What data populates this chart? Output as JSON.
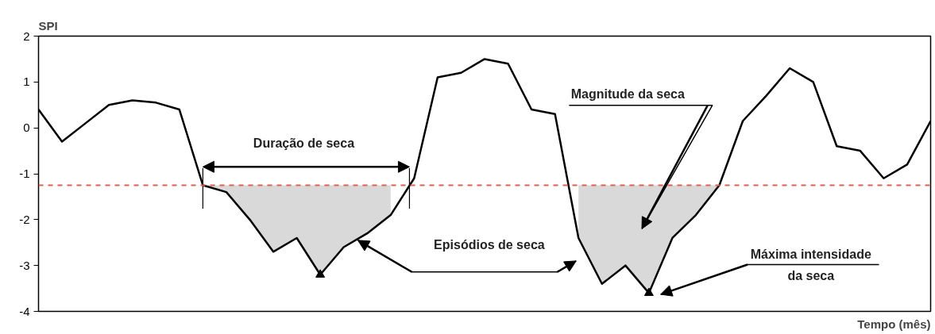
{
  "chart_data": {
    "type": "line",
    "xlabel": "Tempo (mês)",
    "ylabel": "SPI",
    "categories": [
      null,
      null,
      null,
      null,
      null,
      null,
      null,
      null,
      null,
      null,
      null,
      null,
      null,
      null,
      null,
      null,
      null,
      null,
      null,
      null,
      null,
      null,
      null,
      null,
      null,
      null,
      null,
      null,
      null,
      null,
      null,
      null,
      null,
      null,
      null,
      null,
      null,
      null,
      null
    ],
    "series": [
      {
        "color": "#000000",
        "values": [
          0.4,
          -0.3,
          0.1,
          0.5,
          0.6,
          0.55,
          0.4,
          -1.25,
          -1.4,
          -2.0,
          -2.7,
          -2.4,
          -3.2,
          -2.6,
          -2.3,
          -1.9,
          -1.1,
          1.1,
          1.2,
          1.5,
          1.4,
          0.4,
          0.3,
          -2.4,
          -3.4,
          -3.0,
          -3.6,
          -2.4,
          -1.9,
          -1.25,
          0.15,
          0.7,
          1.3,
          1.0,
          -0.4,
          -0.5,
          -1.1,
          -0.8,
          0.15
        ],
        "lower": [
          null,
          null,
          null,
          null,
          null,
          null,
          null,
          -1.25,
          -1.4,
          -2.0,
          -2.7,
          -2.4,
          -3.2,
          -2.6,
          -2.3,
          -1.9,
          null,
          null,
          null,
          null,
          null,
          null,
          null,
          -2.4,
          -3.4,
          -3.0,
          -3.6,
          -2.4,
          -1.9,
          -1.25,
          null,
          null,
          null,
          null,
          null,
          null,
          null,
          null,
          null
        ],
        "upper": [
          null,
          null,
          null,
          null,
          null,
          null,
          null,
          -1.25,
          -1.25,
          -1.25,
          -1.25,
          -1.25,
          -1.25,
          -1.25,
          -1.25,
          -1.25,
          null,
          null,
          null,
          null,
          null,
          null,
          null,
          -1.25,
          -1.25,
          -1.25,
          -1.25,
          -1.25,
          -1.25,
          -1.25,
          null,
          null,
          null,
          null,
          null,
          null,
          null,
          null,
          null
        ]
      }
    ],
    "ref_lines": [
      {
        "axis": "y",
        "value": -1.25,
        "color": "#e06050",
        "line_style": "dashed"
      }
    ],
    "annotations": [
      "Duração de seca",
      "Episódios de seca",
      "Magnitude da seca",
      "Máxima intensidade da seca"
    ],
    "ylim": [
      -4,
      2
    ],
    "yticks": [
      -4,
      -3,
      -2,
      -1,
      0,
      1,
      2
    ],
    "tick_labels": "y",
    "grid": false,
    "marker": "none",
    "line_style": "solid"
  }
}
